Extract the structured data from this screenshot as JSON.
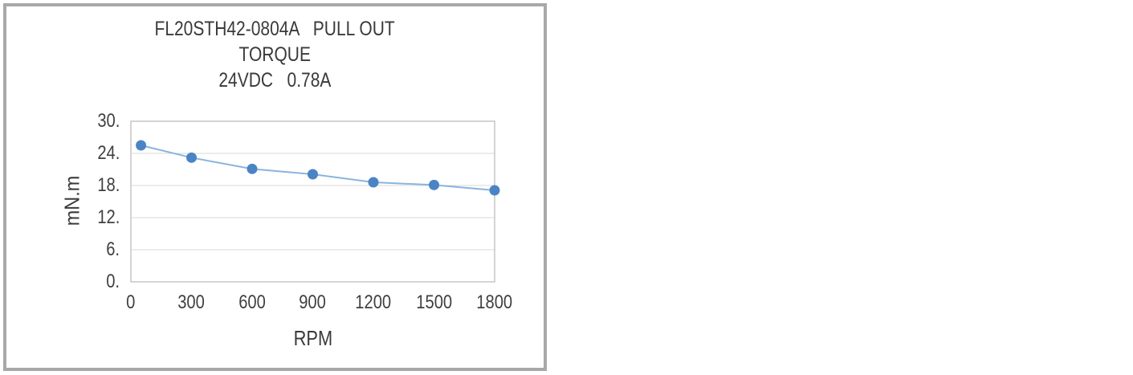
{
  "page": {
    "background": "#ffffff"
  },
  "panel": {
    "border_color": "#a8a8a8"
  },
  "chart_data": {
    "type": "line",
    "title_lines": [
      "FL20STH42-0804A   PULL OUT",
      "TORQUE",
      "24VDC   0.78A"
    ],
    "xlabel": "RPM",
    "ylabel": "mN.m",
    "x": [
      50,
      300,
      600,
      900,
      1200,
      1500,
      1800
    ],
    "y": [
      25.5,
      23.2,
      21.1,
      20.1,
      18.6,
      18.1,
      17.1
    ],
    "xlim": [
      0,
      1800
    ],
    "ylim": [
      0,
      30
    ],
    "x_ticks": [
      0,
      300,
      600,
      900,
      1200,
      1500,
      1800
    ],
    "x_tick_labels": [
      "0",
      "300",
      "600",
      "900",
      "1200",
      "1500",
      "1800"
    ],
    "y_ticks": [
      30,
      24,
      18,
      12,
      6,
      0
    ],
    "y_tick_labels": [
      "30.",
      "24.",
      "18.",
      "12.",
      "6.",
      "0."
    ],
    "grid": "horizontal",
    "legend": "none",
    "colors": {
      "line": "#8ab4de",
      "marker": "#4b84c4",
      "gridline": "#d9d9d9",
      "plot_border": "#c6c6c6",
      "text": "#3f3f3f"
    }
  }
}
